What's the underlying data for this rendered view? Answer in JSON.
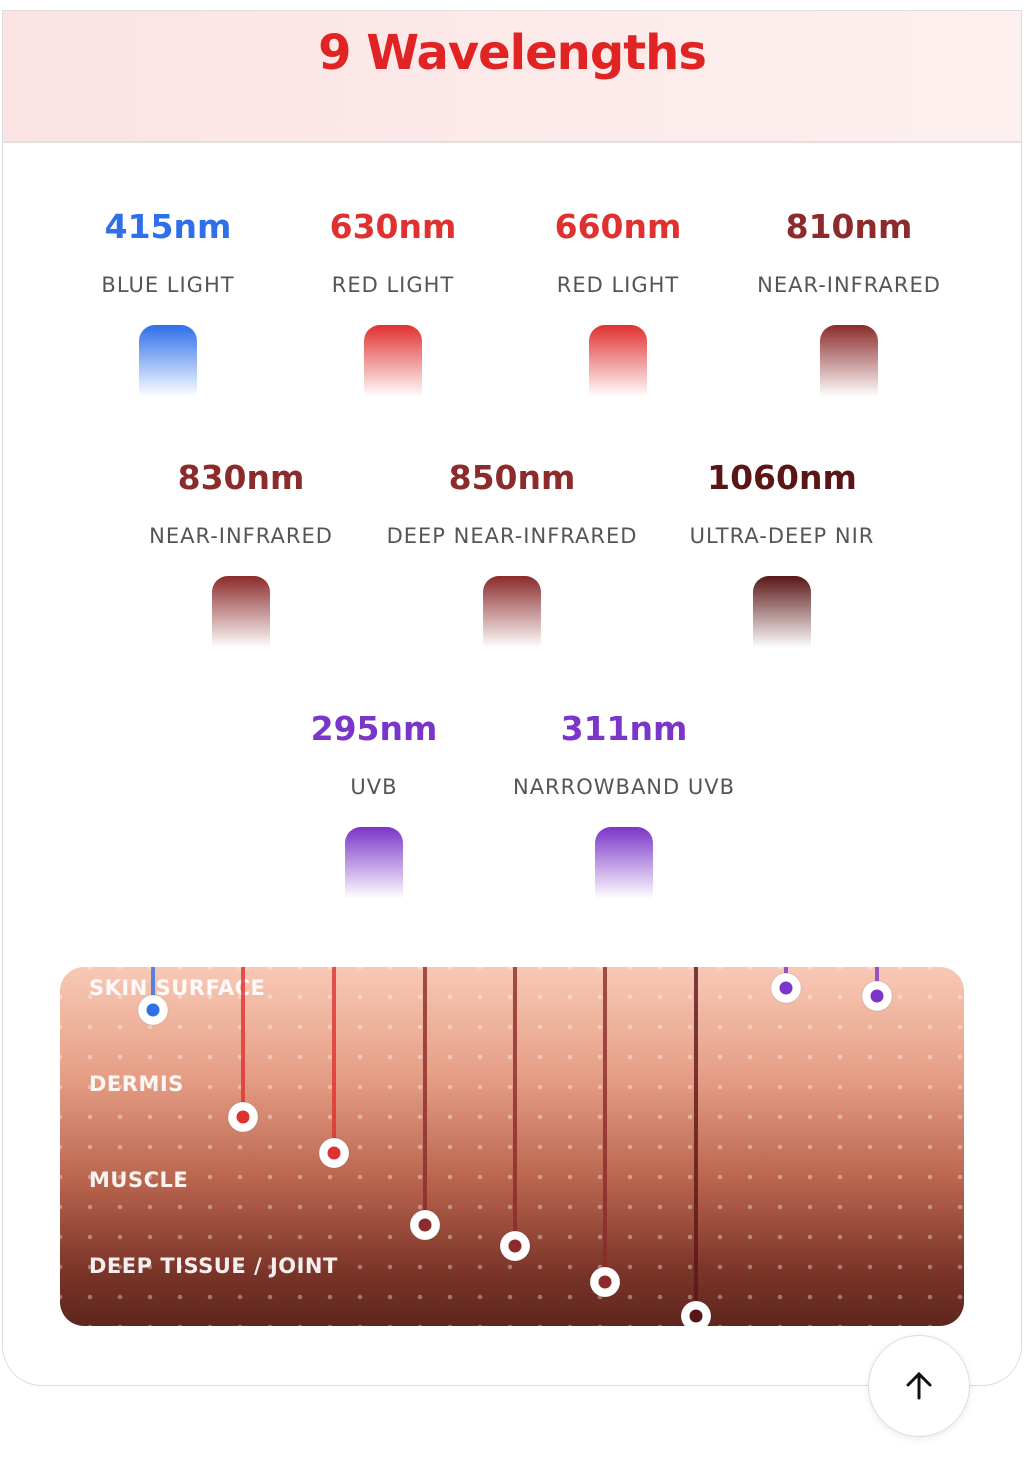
{
  "header": {
    "title": "9 Wavelengths"
  },
  "wavelengths": [
    {
      "nm": "415nm",
      "name": "BLUE LIGHT",
      "color": "#2f6fea"
    },
    {
      "nm": "630nm",
      "name": "RED LIGHT",
      "color": "#e03131"
    },
    {
      "nm": "660nm",
      "name": "RED LIGHT",
      "color": "#e03131"
    },
    {
      "nm": "810nm",
      "name": "NEAR-INFRARED",
      "color": "#8b2b2b"
    },
    {
      "nm": "830nm",
      "name": "NEAR-INFRARED",
      "color": "#8b2b2b"
    },
    {
      "nm": "850nm",
      "name": "DEEP NEAR-INFRARED",
      "color": "#8b2b2b"
    },
    {
      "nm": "1060nm",
      "name": "ULTRA-DEEP NIR",
      "color": "#5a1616"
    },
    {
      "nm": "295nm",
      "name": "UVB",
      "color": "#7b35c8"
    },
    {
      "nm": "311nm",
      "name": "NARROWBAND UVB",
      "color": "#7b35c8"
    }
  ],
  "layers": [
    "SKIN SURFACE",
    "DERMIS",
    "MUSCLE",
    "DEEP TISSUE / JOINT"
  ]
}
